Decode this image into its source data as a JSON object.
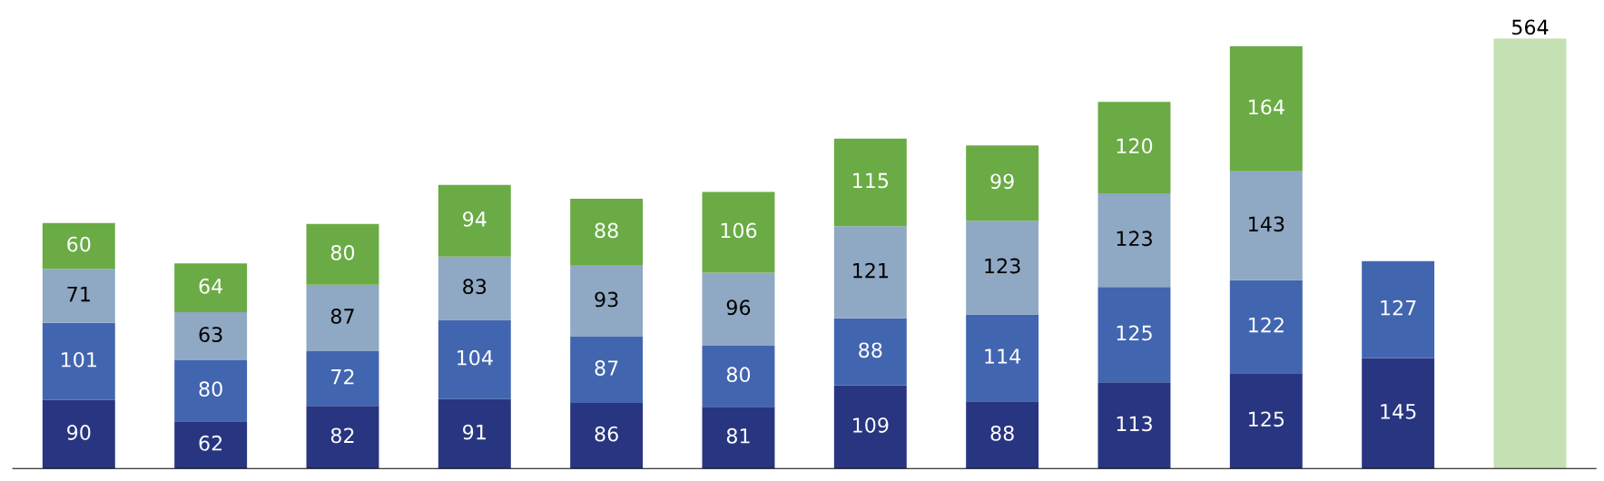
{
  "chart_data": {
    "type": "bar",
    "stacked": true,
    "data_labels": true,
    "legend": false,
    "grid": false,
    "categories": [
      null,
      null,
      null,
      null,
      null,
      null,
      null,
      null,
      null,
      null,
      null,
      null
    ],
    "series": [
      {
        "color": "#283580",
        "values": [
          90,
          62,
          82,
          91,
          86,
          81,
          109,
          88,
          113,
          125,
          145,
          null
        ]
      },
      {
        "color": "#4265b0",
        "values": [
          101,
          80,
          72,
          104,
          87,
          80,
          88,
          114,
          125,
          122,
          127,
          null
        ]
      },
      {
        "color": "#8fa8c3",
        "values": [
          71,
          63,
          87,
          83,
          93,
          96,
          121,
          123,
          123,
          143,
          null,
          null
        ]
      },
      {
        "color": "#6aab45",
        "values": [
          60,
          64,
          80,
          94,
          88,
          106,
          115,
          99,
          120,
          164,
          null,
          null
        ]
      },
      {
        "color": "#c5e0b3",
        "values": [
          null,
          null,
          null,
          null,
          null,
          null,
          null,
          null,
          null,
          null,
          null,
          564
        ]
      }
    ]
  }
}
